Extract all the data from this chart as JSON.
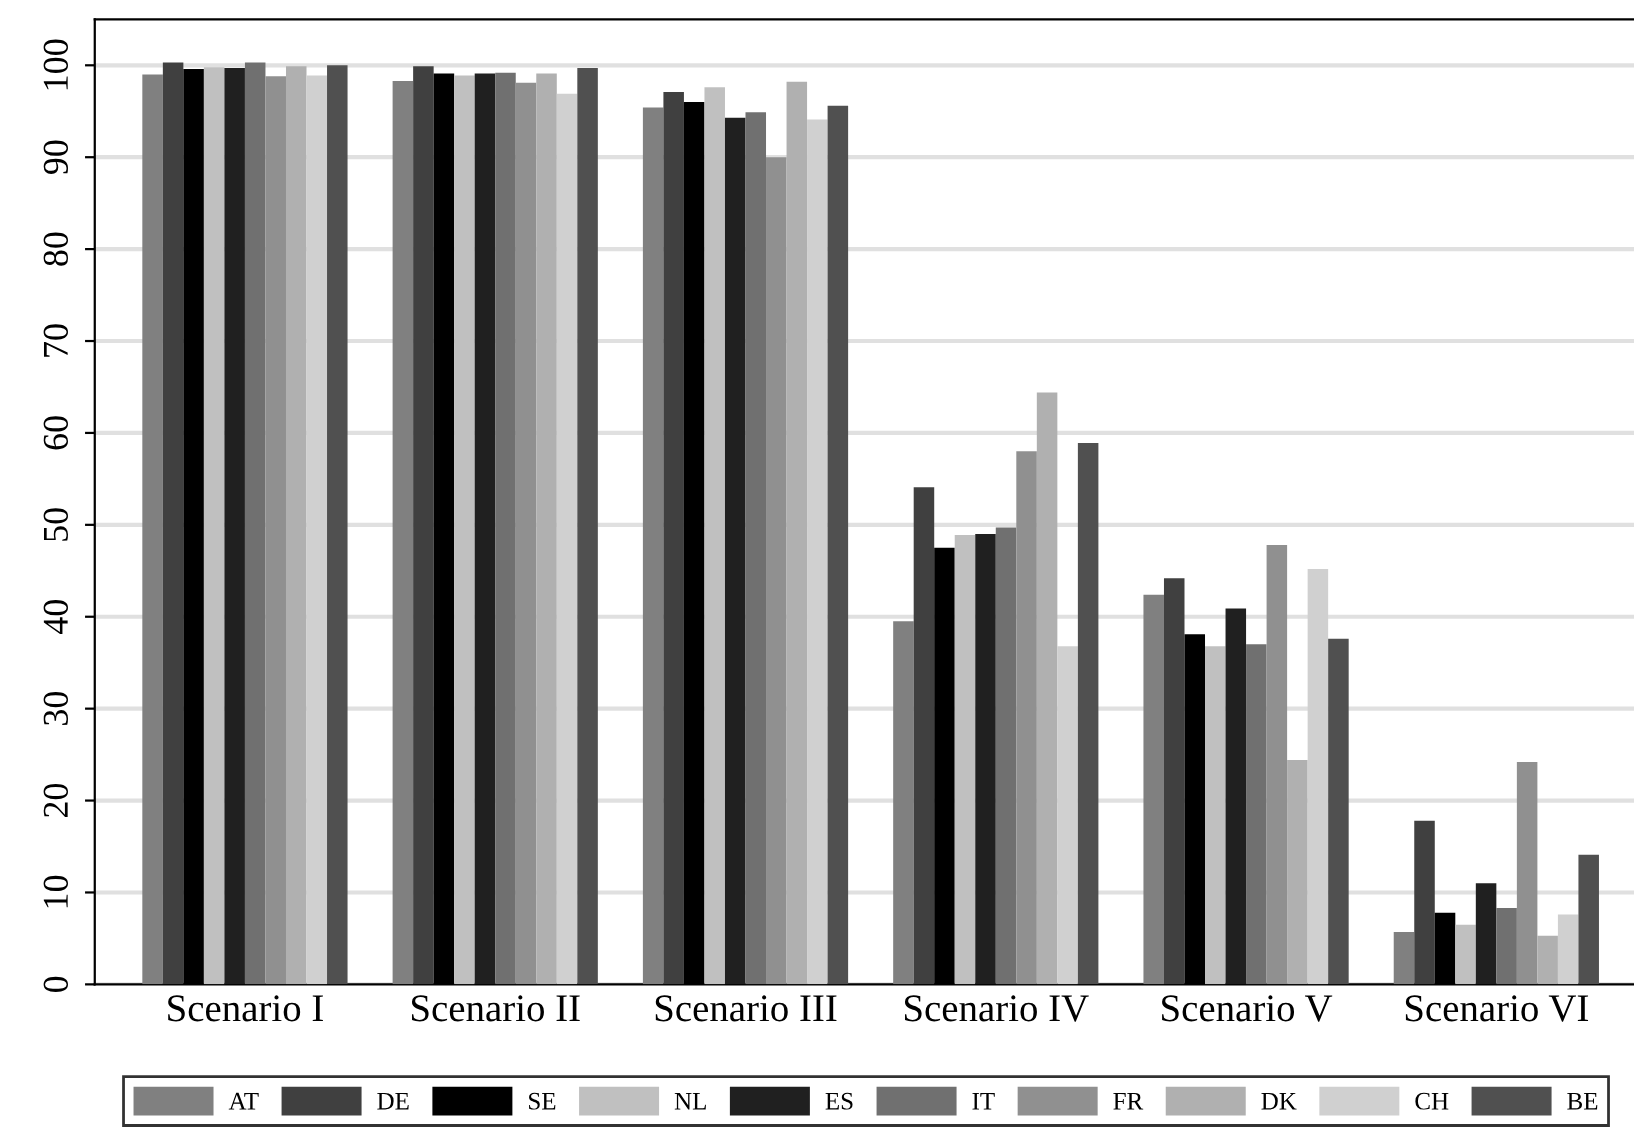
{
  "chart_data": {
    "type": "bar",
    "categories": [
      "Scenario I",
      "Scenario II",
      "Scenario III",
      "Scenario IV",
      "Scenario V",
      "Scenario VI"
    ],
    "ylim": [
      0,
      105
    ],
    "yticks": [
      0,
      10,
      20,
      30,
      40,
      50,
      60,
      70,
      80,
      90,
      100
    ],
    "grid": "y",
    "legend": "bottom",
    "series": [
      {
        "name": "AT",
        "color": "#808080",
        "values": [
          99,
          98.3,
          95.4,
          39.5,
          42.4,
          5.7
        ]
      },
      {
        "name": "DE",
        "color": "#404040",
        "values": [
          100.3,
          99.9,
          97.1,
          54.1,
          44.2,
          17.8
        ]
      },
      {
        "name": "SE",
        "color": "#000000",
        "values": [
          99.6,
          99.1,
          96,
          47.5,
          38.1,
          7.8
        ]
      },
      {
        "name": "NL",
        "color": "#c0c0c0",
        "values": [
          99.8,
          98.9,
          97.6,
          48.9,
          36.8,
          6.5
        ]
      },
      {
        "name": "ES",
        "color": "#202020",
        "values": [
          99.7,
          99.1,
          94.3,
          49,
          40.9,
          11
        ]
      },
      {
        "name": "IT",
        "color": "#707070",
        "values": [
          100.3,
          99.2,
          94.9,
          49.7,
          37,
          8.3
        ]
      },
      {
        "name": "FR",
        "color": "#909090",
        "values": [
          98.8,
          98.1,
          90,
          58,
          47.8,
          24.2
        ]
      },
      {
        "name": "DK",
        "color": "#b0b0b0",
        "values": [
          99.9,
          99.1,
          98.2,
          64.4,
          24.4,
          5.3
        ]
      },
      {
        "name": "CH",
        "color": "#d0d0d0",
        "values": [
          98.9,
          96.9,
          94.1,
          36.8,
          45.2,
          7.6
        ]
      },
      {
        "name": "BE",
        "color": "#505050",
        "values": [
          100,
          99.7,
          95.6,
          58.9,
          37.6,
          14.1
        ]
      }
    ]
  }
}
